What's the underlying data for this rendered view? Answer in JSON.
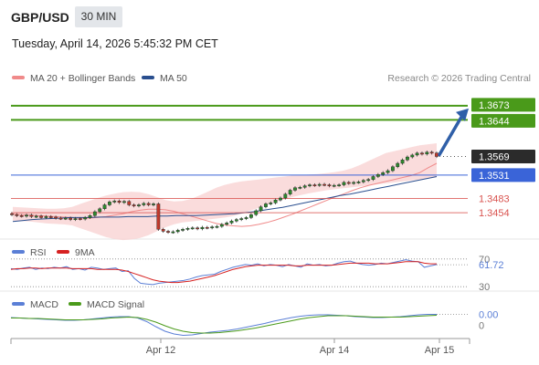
{
  "header": {
    "pair": "GBP/USD",
    "timeframe": "30 MIN",
    "datetime": "Tuesday, April 14, 2026 5:45:32 PM CET"
  },
  "main_legend": [
    {
      "label": "MA 20 + Bollinger Bands",
      "color": "#f08a8a"
    },
    {
      "label": "MA 50",
      "color": "#2a4f8f"
    }
  ],
  "credit": "Research © 2026 Trading Central",
  "rsi_legend": [
    {
      "label": "RSI",
      "color": "#5b7fd6"
    },
    {
      "label": "9MA",
      "color": "#d62020"
    }
  ],
  "macd_legend": [
    {
      "label": "MACD",
      "color": "#5b7fd6"
    },
    {
      "label": "MACD Signal",
      "color": "#4a9a1a"
    }
  ],
  "colors": {
    "green": "#4a9a1a",
    "blue": "#3a64d8",
    "red": "#d9534f",
    "arrow": "#2f5fa8",
    "current_tag": "#2b2b2b"
  },
  "chart_data": [
    {
      "type": "candlestick",
      "title": "GBP/USD",
      "x_ticks": [
        "Apr 12",
        "Apr 14",
        "Apr 15"
      ],
      "ylim": [
        1.34,
        1.371
      ],
      "current_price": "1.3569",
      "levels": [
        {
          "label": "1.3673",
          "value": 1.3673,
          "kind": "target",
          "color": "#4a9a1a"
        },
        {
          "label": "1.3644",
          "value": 1.3644,
          "kind": "target",
          "color": "#4a9a1a"
        },
        {
          "label": "1.3531",
          "value": 1.3531,
          "kind": "pivot",
          "color": "#3a64d8"
        },
        {
          "label": "1.3483",
          "value": 1.3483,
          "kind": "support",
          "color": "#d9534f"
        },
        {
          "label": "1.3454",
          "value": 1.3454,
          "kind": "support",
          "color": "#d9534f"
        }
      ],
      "close": [
        1.345,
        1.3448,
        1.3447,
        1.3449,
        1.3446,
        1.3447,
        1.3444,
        1.3446,
        1.3445,
        1.3443,
        1.3442,
        1.3443,
        1.344,
        1.3442,
        1.3441,
        1.3444,
        1.3448,
        1.3456,
        1.3462,
        1.347,
        1.3476,
        1.3478,
        1.3475,
        1.3477,
        1.347,
        1.3468,
        1.347,
        1.3473,
        1.347,
        1.3472,
        1.342,
        1.3416,
        1.3414,
        1.3415,
        1.3418,
        1.342,
        1.3422,
        1.3423,
        1.3421,
        1.3424,
        1.3423,
        1.3425,
        1.3426,
        1.343,
        1.3433,
        1.3437,
        1.344,
        1.3442,
        1.3444,
        1.345,
        1.3458,
        1.3466,
        1.3472,
        1.3474,
        1.348,
        1.3484,
        1.3492,
        1.35,
        1.3505,
        1.3506,
        1.3509,
        1.3511,
        1.351,
        1.3512,
        1.3511,
        1.3509,
        1.351,
        1.3511,
        1.3516,
        1.3514,
        1.3516,
        1.3517,
        1.352,
        1.3522,
        1.3528,
        1.3532,
        1.3536,
        1.354,
        1.3548,
        1.3555,
        1.3562,
        1.3568,
        1.3572,
        1.3576,
        1.3574,
        1.3578,
        1.3576,
        1.3569
      ],
      "ma20": [
        1.3451,
        1.345,
        1.3449,
        1.3448,
        1.3447,
        1.3446,
        1.3445,
        1.3444,
        1.3443,
        1.3443,
        1.3444,
        1.3446,
        1.3449,
        1.3452,
        1.3456,
        1.3459,
        1.3461,
        1.3461,
        1.346,
        1.3457,
        1.3452,
        1.3447,
        1.3442,
        1.3437,
        1.3432,
        1.3429,
        1.3427,
        1.3426,
        1.3427,
        1.343,
        1.3434,
        1.3439,
        1.3445,
        1.3451,
        1.3458,
        1.3465,
        1.3472,
        1.3479,
        1.3486,
        1.3492,
        1.3499,
        1.3505,
        1.351,
        1.3514,
        1.3518,
        1.3522,
        1.3526,
        1.353,
        1.3536,
        1.3546,
        1.3555
      ],
      "ma50": [
        1.3436,
        1.3438,
        1.344,
        1.3441,
        1.3442,
        1.3443,
        1.3444,
        1.3444,
        1.3444,
        1.3445,
        1.3445,
        1.3445,
        1.3446,
        1.3446,
        1.3446,
        1.3447,
        1.3447,
        1.3448,
        1.3448,
        1.3448,
        1.3449,
        1.345,
        1.3451,
        1.3452,
        1.3454,
        1.3456,
        1.3459,
        1.3462,
        1.3465,
        1.3469,
        1.3473,
        1.3477,
        1.3481,
        1.3485,
        1.3489,
        1.3492,
        1.3496,
        1.35,
        1.3504,
        1.3508,
        1.3512,
        1.3516,
        1.352,
        1.3524,
        1.3528
      ],
      "bb_upper": [
        1.3466,
        1.3465,
        1.3464,
        1.3463,
        1.3462,
        1.3462,
        1.3463,
        1.3466,
        1.3472,
        1.3478,
        1.3484,
        1.3489,
        1.3493,
        1.3496,
        1.3497,
        1.3496,
        1.3492,
        1.3486,
        1.348,
        1.3477,
        1.3478,
        1.3482,
        1.3489,
        1.3497,
        1.3505,
        1.3511,
        1.3515,
        1.3518,
        1.352,
        1.3522,
        1.3524,
        1.3526,
        1.3528,
        1.353,
        1.3531,
        1.3532,
        1.3533,
        1.3535,
        1.3537,
        1.354,
        1.3545,
        1.3552,
        1.356,
        1.3568,
        1.3576,
        1.358,
        1.3584,
        1.3588,
        1.3592,
        1.3594,
        1.3596
      ],
      "bb_lower": [
        1.3438,
        1.3437,
        1.3436,
        1.3434,
        1.3432,
        1.3431,
        1.343,
        1.3428,
        1.3422,
        1.3416,
        1.341,
        1.3404,
        1.34,
        1.3398,
        1.3399,
        1.3402,
        1.3408,
        1.3416,
        1.3424,
        1.343,
        1.3434,
        1.3436,
        1.3438,
        1.344,
        1.3442,
        1.3444,
        1.3447,
        1.3452,
        1.3458,
        1.3464,
        1.347,
        1.3476,
        1.3481,
        1.3486,
        1.349,
        1.3494,
        1.3497,
        1.35,
        1.3502,
        1.3504,
        1.3506,
        1.3508,
        1.351,
        1.3512,
        1.3514,
        1.3516,
        1.3518,
        1.352,
        1.3522,
        1.3524,
        1.3526
      ]
    },
    {
      "type": "line",
      "title": "RSI",
      "tick_labels": [
        "70",
        "61.72",
        "30"
      ],
      "current_value": 61.72,
      "ylim": [
        25,
        75
      ],
      "series": [
        {
          "name": "RSI",
          "color": "#5b7fd6",
          "values": [
            56,
            55,
            57,
            58,
            55,
            57,
            56,
            58,
            57,
            59,
            55,
            56,
            54,
            58,
            57,
            55,
            56,
            57,
            52,
            53,
            42,
            35,
            34,
            33,
            35,
            36,
            37,
            38,
            39,
            41,
            44,
            46,
            47,
            48,
            52,
            55,
            58,
            60,
            62,
            61,
            63,
            60,
            62,
            61,
            59,
            62,
            60,
            58,
            63,
            61,
            62,
            60,
            61,
            64,
            66,
            67,
            64,
            62,
            61,
            62,
            64,
            63,
            65,
            67,
            69,
            67,
            66,
            58,
            60,
            62
          ]
        },
        {
          "name": "9MA",
          "color": "#d62020",
          "values": [
            55,
            56,
            56,
            57,
            57,
            56,
            57,
            57,
            57,
            57,
            56,
            56,
            56,
            56,
            55,
            55,
            55,
            55,
            54,
            52,
            49,
            46,
            43,
            40,
            38,
            37,
            36,
            36,
            37,
            38,
            40,
            42,
            44,
            46,
            49,
            52,
            55,
            57,
            59,
            60,
            61,
            61,
            61,
            61,
            61,
            61,
            60,
            60,
            61,
            61,
            61,
            61,
            61,
            62,
            63,
            64,
            64,
            64,
            64,
            63,
            63,
            63,
            64,
            65,
            66,
            66,
            66,
            64,
            63,
            63
          ]
        }
      ]
    },
    {
      "type": "line",
      "title": "MACD",
      "tick_labels": [
        "0.00",
        "0"
      ],
      "ylim": [
        -0.004,
        0.002
      ],
      "series": [
        {
          "name": "MACD",
          "color": "#5b7fd6",
          "values": [
            0.0004,
            0.0003,
            0.0002,
            0.0001,
            0.0,
            -0.0001,
            -0.0002,
            -0.0002,
            -0.0001,
            0.0001,
            0.0003,
            0.0005,
            0.0006,
            0.0006,
            0.0003,
            -0.0005,
            -0.0016,
            -0.0026,
            -0.0032,
            -0.0035,
            -0.0034,
            -0.0031,
            -0.0028,
            -0.0026,
            -0.0024,
            -0.0021,
            -0.0017,
            -0.0013,
            -0.0009,
            -0.0004,
            0.0,
            0.0004,
            0.0007,
            0.0009,
            0.001,
            0.001,
            0.0009,
            0.0008,
            0.0006,
            0.0005,
            0.0004,
            0.0004,
            0.0005,
            0.0006,
            0.0008,
            0.001,
            0.0011,
            0.0011
          ]
        },
        {
          "name": "MACD Signal",
          "color": "#4a9a1a",
          "values": [
            0.0003,
            0.0003,
            0.0002,
            0.0002,
            0.0001,
            0.0,
            -0.0001,
            -0.0001,
            -0.0001,
            0.0,
            0.0001,
            0.0003,
            0.0004,
            0.0005,
            0.0004,
            0.0,
            -0.0006,
            -0.0014,
            -0.0021,
            -0.0026,
            -0.0029,
            -0.003,
            -0.003,
            -0.0029,
            -0.0027,
            -0.0025,
            -0.0022,
            -0.0019,
            -0.0015,
            -0.0011,
            -0.0007,
            -0.0003,
            0.0001,
            0.0004,
            0.0006,
            0.0008,
            0.0008,
            0.0008,
            0.0007,
            0.0006,
            0.0005,
            0.0005,
            0.0005,
            0.0005,
            0.0006,
            0.0007,
            0.0008,
            0.0009
          ]
        }
      ]
    }
  ]
}
